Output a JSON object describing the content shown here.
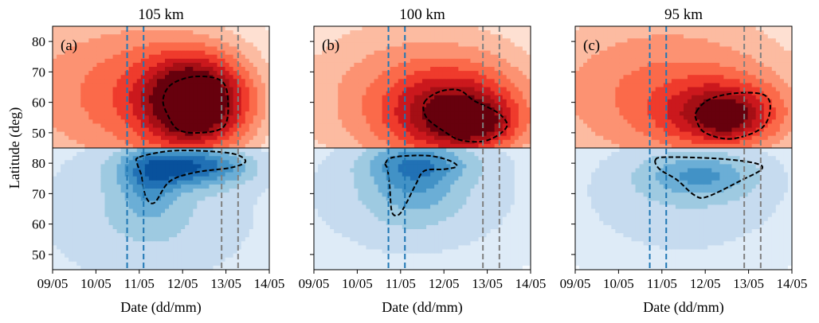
{
  "chart_data": {
    "type": "heatmap",
    "x_axis": {
      "label": "Date (dd/mm)",
      "ticks": [
        "09/05",
        "10/05",
        "11/05",
        "12/05",
        "13/05",
        "14/05"
      ],
      "range": [
        0,
        5
      ]
    },
    "y_axis_top": {
      "ticks": [
        "50",
        "60",
        "70",
        "80"
      ],
      "range": [
        45,
        85
      ]
    },
    "y_axis_bottom": {
      "ticks": [
        "50",
        "60",
        "70",
        "80"
      ],
      "range": [
        45,
        85
      ]
    },
    "ylabel": "Latitude (deg)",
    "colors": {
      "top_scale": [
        "#fff5f0",
        "#fee0d2",
        "#fcbba1",
        "#fc9272",
        "#fb6a4a",
        "#ef3b2c",
        "#cb181d",
        "#a50f15",
        "#67000d"
      ],
      "bottom_scale": [
        "#f7fbff",
        "#deebf7",
        "#c6dbef",
        "#9ecae1",
        "#6baed6",
        "#4292c6",
        "#2171b5",
        "#08519c"
      ],
      "blue_line": "#1f77b4",
      "gray_line": "#7f7f7f"
    },
    "blue_lines_x": [
      1.72,
      2.1
    ],
    "gray_lines_x": [
      3.9,
      4.28
    ],
    "panels": [
      {
        "label": "(a)",
        "title": "105 km",
        "top": {
          "blobs": [
            {
              "cx": 1.6,
              "cy": 63,
              "sx": 2.2,
              "sy": 22,
              "amp": 2.6
            },
            {
              "cx": 3.35,
              "cy": 60,
              "sx": 0.9,
              "sy": 11,
              "amp": 4.6
            },
            {
              "cx": 3.05,
              "cy": 60,
              "sx": 0.35,
              "sy": 5.5,
              "amp": 1.6
            }
          ],
          "contour": [
            [
              2.55,
              61
            ],
            [
              2.75,
              66
            ],
            [
              3.3,
              68.5
            ],
            [
              3.9,
              67
            ],
            [
              4.05,
              60
            ],
            [
              3.95,
              52
            ],
            [
              3.4,
              50
            ],
            [
              2.9,
              51
            ],
            [
              2.65,
              56
            ]
          ]
        },
        "bottom": {
          "blobs": [
            {
              "cx": 2.2,
              "cy": 64,
              "sx": 2.6,
              "sy": 25,
              "amp": 2.1
            },
            {
              "cx": 3.2,
              "cy": 79,
              "sx": 1.0,
              "sy": 4.5,
              "amp": 3.2
            },
            {
              "cx": 2.25,
              "cy": 73,
              "sx": 0.45,
              "sy": 8,
              "amp": 1.6
            }
          ],
          "contour": [
            [
              2.0,
              82
            ],
            [
              2.7,
              84
            ],
            [
              3.5,
              84
            ],
            [
              4.2,
              83
            ],
            [
              4.45,
              80.5
            ],
            [
              4.1,
              78.5
            ],
            [
              3.3,
              77
            ],
            [
              2.7,
              74
            ],
            [
              2.35,
              67
            ],
            [
              2.15,
              69
            ],
            [
              2.05,
              76
            ],
            [
              1.95,
              80
            ]
          ]
        }
      },
      {
        "label": "(b)",
        "title": "100 km",
        "top": {
          "blobs": [
            {
              "cx": 2.4,
              "cy": 62,
              "sx": 2.4,
              "sy": 22,
              "amp": 2.3
            },
            {
              "cx": 3.3,
              "cy": 56,
              "sx": 1.1,
              "sy": 10,
              "amp": 3.2
            },
            {
              "cx": 3.75,
              "cy": 53,
              "sx": 0.6,
              "sy": 4.5,
              "amp": 1.5
            }
          ],
          "contour": [
            [
              2.55,
              60
            ],
            [
              2.9,
              63.5
            ],
            [
              3.35,
              64
            ],
            [
              3.7,
              60.5
            ],
            [
              4.25,
              56.5
            ],
            [
              4.45,
              52
            ],
            [
              4.0,
              47.5
            ],
            [
              3.4,
              47.5
            ],
            [
              3.0,
              50.5
            ],
            [
              2.6,
              55
            ]
          ]
        },
        "bottom": {
          "blobs": [
            {
              "cx": 2.3,
              "cy": 70,
              "sx": 2.6,
              "sy": 22,
              "amp": 2.0
            },
            {
              "cx": 2.3,
              "cy": 76,
              "sx": 0.7,
              "sy": 9,
              "amp": 1.7
            },
            {
              "cx": 2.6,
              "cy": 80,
              "sx": 1.0,
              "sy": 4,
              "amp": 1.0
            }
          ],
          "contour": [
            [
              1.65,
              80
            ],
            [
              1.85,
              82
            ],
            [
              2.6,
              82.5
            ],
            [
              3.1,
              81
            ],
            [
              3.3,
              79
            ],
            [
              3.0,
              78
            ],
            [
              2.55,
              77.5
            ],
            [
              2.35,
              73
            ],
            [
              2.1,
              66
            ],
            [
              1.95,
              63
            ],
            [
              1.8,
              64
            ],
            [
              1.75,
              72
            ],
            [
              1.7,
              78
            ]
          ]
        }
      },
      {
        "label": "(c)",
        "title": "95 km",
        "top": {
          "blobs": [
            {
              "cx": 2.1,
              "cy": 63,
              "sx": 2.6,
              "sy": 22,
              "amp": 2.6
            },
            {
              "cx": 3.45,
              "cy": 56,
              "sx": 0.95,
              "sy": 7.5,
              "amp": 3.0
            },
            {
              "cx": 3.5,
              "cy": 55,
              "sx": 0.35,
              "sy": 3.5,
              "amp": 1.0
            }
          ],
          "contour": [
            [
              2.8,
              57
            ],
            [
              3.1,
              61
            ],
            [
              3.7,
              63
            ],
            [
              4.35,
              62.5
            ],
            [
              4.5,
              58
            ],
            [
              4.3,
              51.5
            ],
            [
              3.6,
              48
            ],
            [
              3.0,
              50
            ],
            [
              2.8,
              54
            ]
          ]
        },
        "bottom": {
          "blobs": [
            {
              "cx": 2.5,
              "cy": 70,
              "sx": 2.6,
              "sy": 22,
              "amp": 1.9
            },
            {
              "cx": 2.9,
              "cy": 76,
              "sx": 0.9,
              "sy": 5,
              "amp": 1.8
            }
          ],
          "contour": [
            [
              1.85,
              81
            ],
            [
              2.1,
              82
            ],
            [
              3.3,
              81.5
            ],
            [
              4.15,
              80
            ],
            [
              4.3,
              78
            ],
            [
              3.85,
              74.5
            ],
            [
              3.05,
              69
            ],
            [
              2.75,
              69.5
            ],
            [
              2.35,
              74.5
            ],
            [
              1.95,
              78
            ]
          ]
        }
      }
    ]
  }
}
